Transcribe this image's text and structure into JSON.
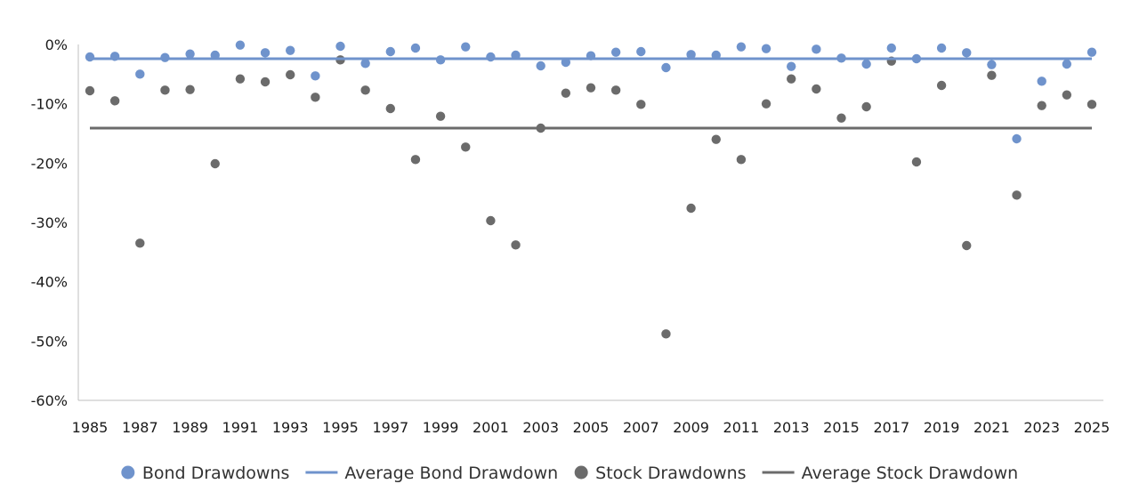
{
  "chart_data": {
    "type": "scatter",
    "title": "",
    "xlabel": "",
    "ylabel": "",
    "ylim": [
      -60,
      0
    ],
    "y_ticks": [
      0,
      -10,
      -20,
      -30,
      -40,
      -50,
      -60
    ],
    "y_tick_labels": [
      "0%",
      "-10%",
      "-20%",
      "-30%",
      "-40%",
      "-50%",
      "-60%"
    ],
    "x": [
      1985,
      1986,
      1987,
      1988,
      1989,
      1990,
      1991,
      1992,
      1993,
      1994,
      1995,
      1996,
      1997,
      1998,
      1999,
      2000,
      2001,
      2002,
      2003,
      2004,
      2005,
      2006,
      2007,
      2008,
      2009,
      2010,
      2011,
      2012,
      2013,
      2014,
      2015,
      2016,
      2017,
      2018,
      2019,
      2020,
      2021,
      2022,
      2023,
      2024,
      2025
    ],
    "x_tick_labels": [
      "1985",
      "1987",
      "1989",
      "1991",
      "1993",
      "1995",
      "1997",
      "1999",
      "2001",
      "2003",
      "2005",
      "2007",
      "2009",
      "2011",
      "2013",
      "2015",
      "2017",
      "2019",
      "2021",
      "2023",
      "2025"
    ],
    "grid": false,
    "legend_position": "bottom",
    "series": [
      {
        "name": "Bond Drawdowns",
        "kind": "scatter",
        "color": "#6f93cc",
        "values": [
          -2.1,
          -2.0,
          -5.0,
          -2.2,
          -1.6,
          -1.8,
          -0.1,
          -1.4,
          -1.0,
          -5.3,
          -0.3,
          -3.2,
          -1.2,
          -0.6,
          -2.6,
          -0.4,
          -2.1,
          -1.8,
          -3.6,
          -3.0,
          -1.9,
          -1.3,
          -1.2,
          -3.9,
          -1.7,
          -1.8,
          -0.4,
          -0.7,
          -3.7,
          -0.8,
          -2.3,
          -3.3,
          -0.6,
          -2.4,
          -0.6,
          -1.4,
          -3.4,
          -15.9,
          -6.2,
          -3.3,
          -1.3
        ]
      },
      {
        "name": "Average Bond Drawdown",
        "kind": "line",
        "color": "#6f93cc",
        "value": -2.4
      },
      {
        "name": "Stock Drawdowns",
        "kind": "scatter",
        "color": "#6b6b6b",
        "values": [
          -7.8,
          -9.5,
          -33.5,
          -7.7,
          -7.6,
          -20.1,
          -5.8,
          -6.3,
          -5.1,
          -8.9,
          -2.6,
          -7.7,
          -10.8,
          -19.4,
          -12.1,
          -17.3,
          -29.7,
          -33.8,
          -14.1,
          -8.2,
          -7.3,
          -7.7,
          -10.1,
          -48.8,
          -27.6,
          -16.0,
          -19.4,
          -10.0,
          -5.8,
          -7.5,
          -12.4,
          -10.5,
          -2.8,
          -19.8,
          -6.9,
          -33.9,
          -5.2,
          -25.4,
          -10.3,
          -8.5,
          -10.1
        ]
      },
      {
        "name": "Average Stock Drawdown",
        "kind": "line",
        "color": "#6b6b6b",
        "value": -14.1
      }
    ]
  }
}
